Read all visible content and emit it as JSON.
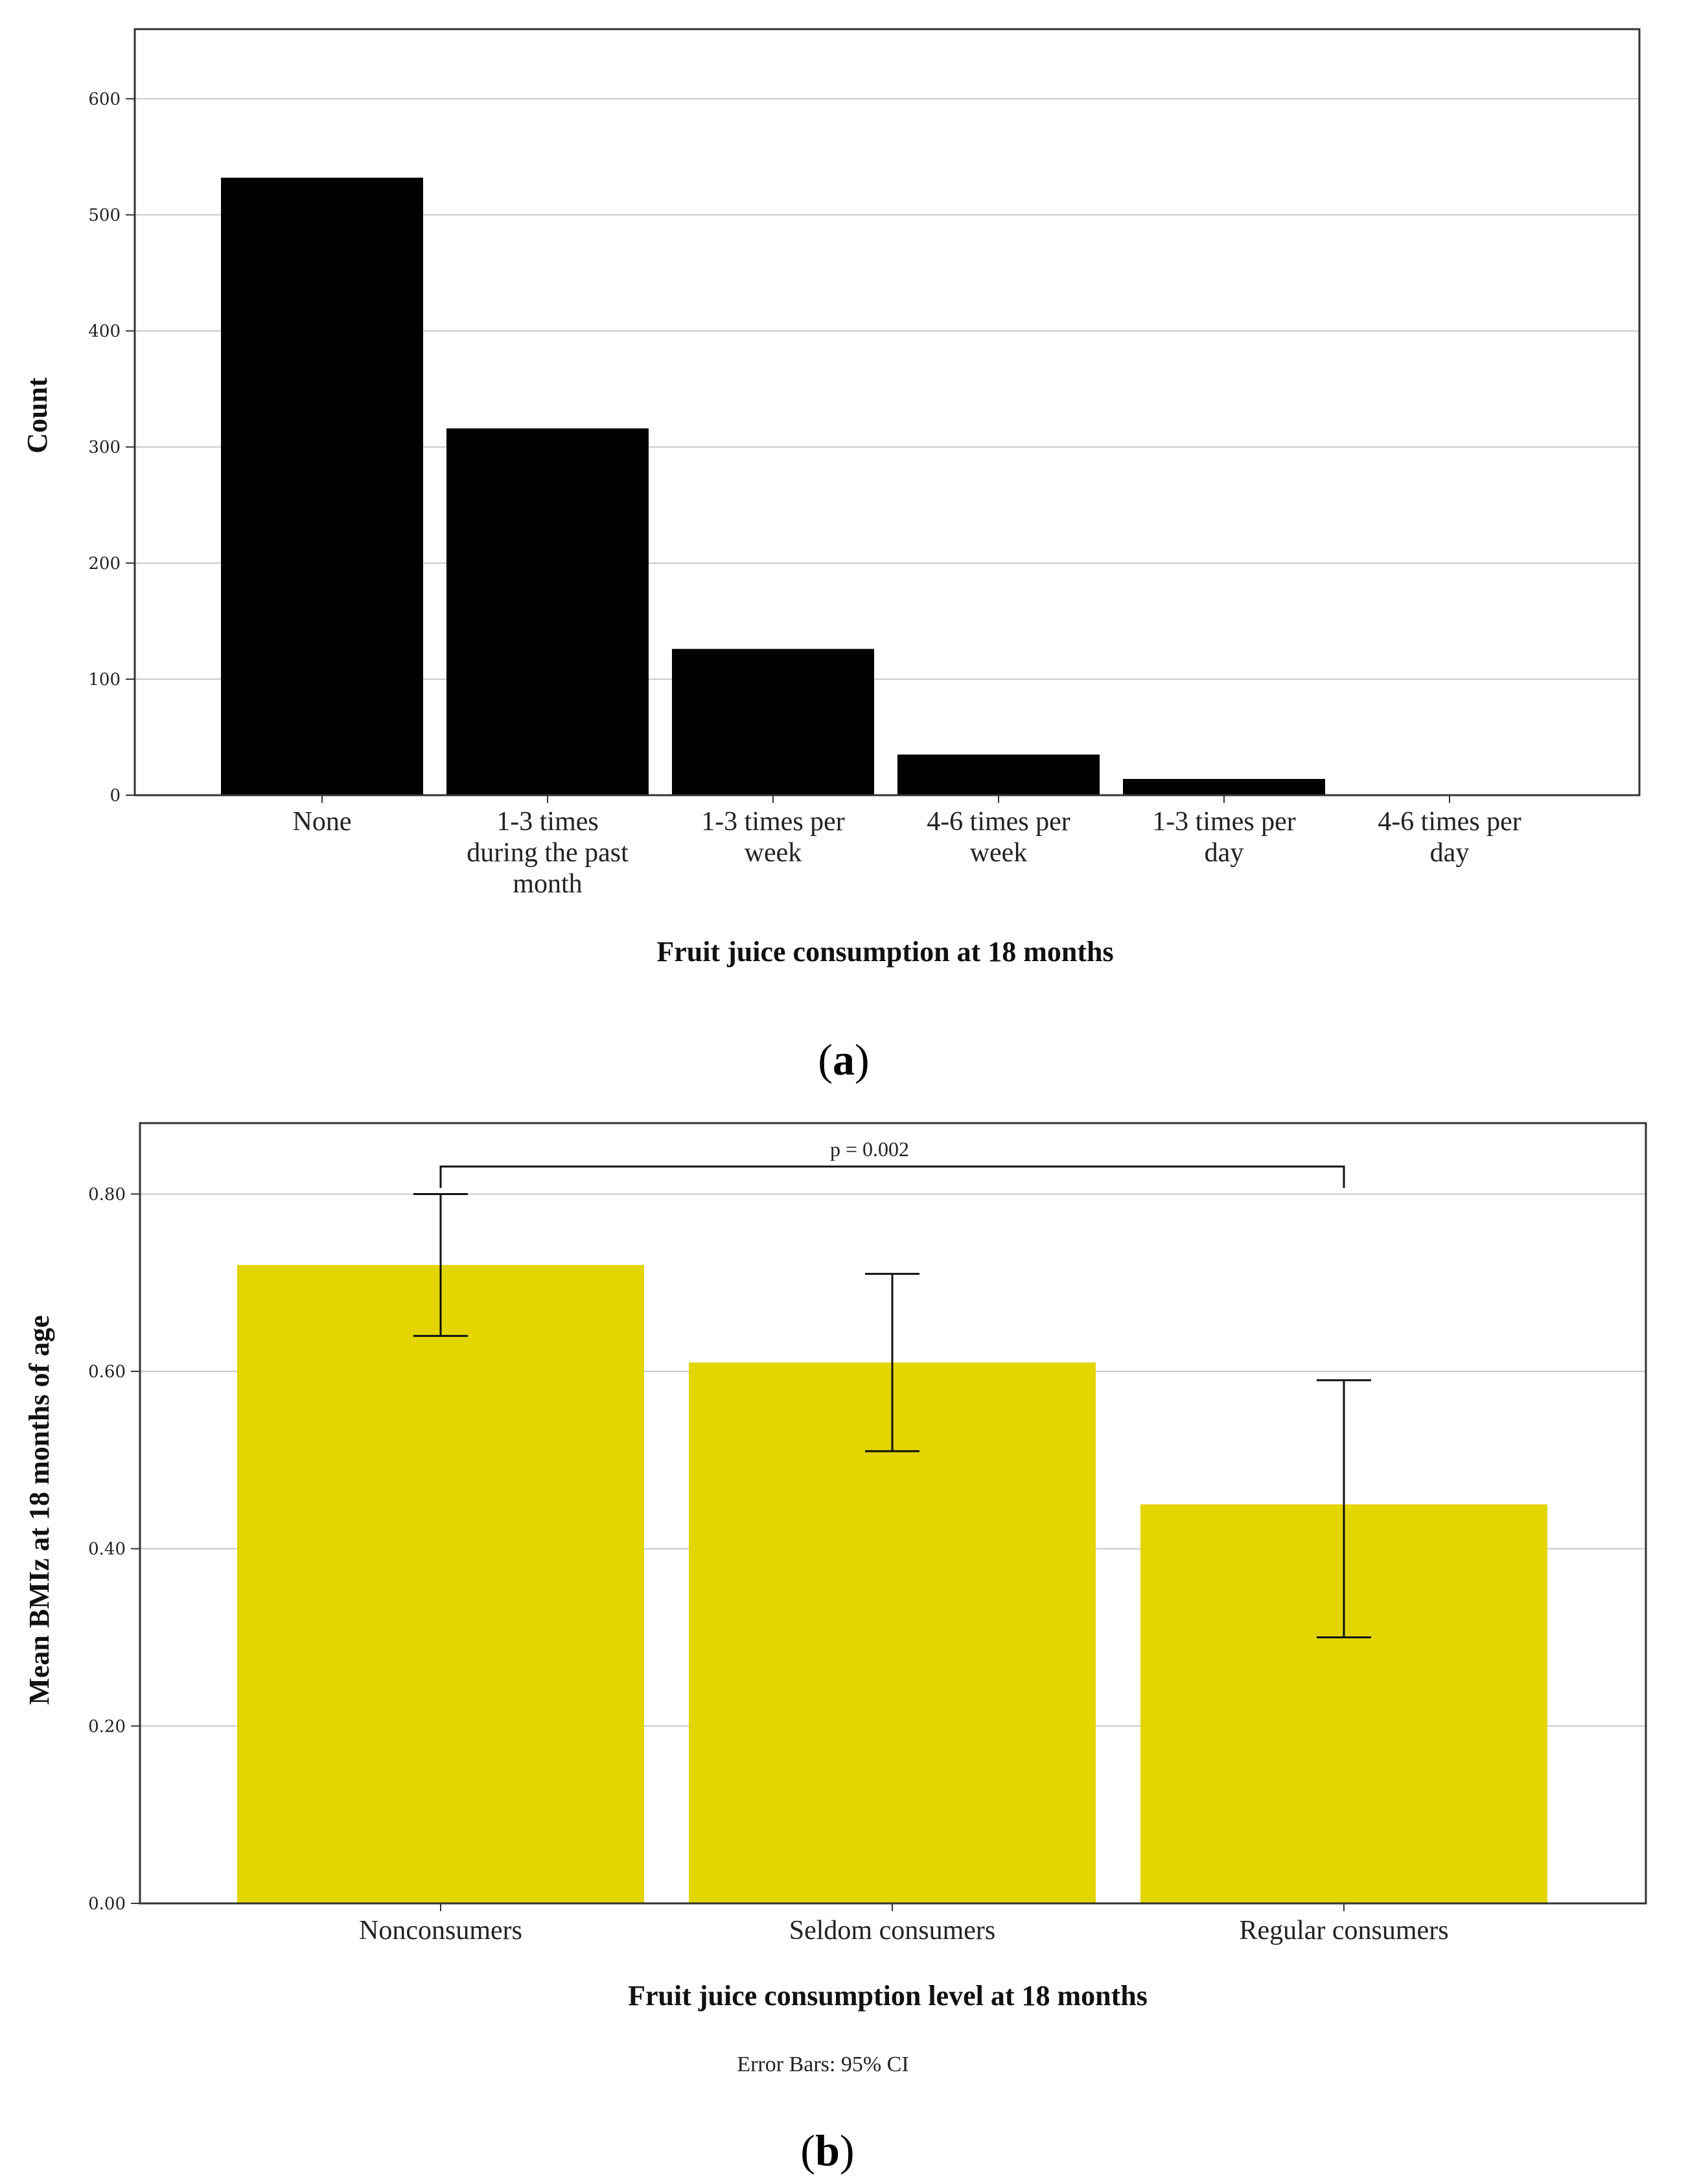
{
  "chart_data": [
    {
      "type": "bar",
      "panel_label": "a",
      "title": "",
      "xlabel": "Fruit juice consumption at 18 months",
      "ylabel": "Count",
      "ylim": [
        0,
        660
      ],
      "yticks": [
        0,
        100,
        200,
        300,
        400,
        500,
        600
      ],
      "grid": true,
      "categories": [
        [
          "None"
        ],
        [
          "1-3 times",
          "during the past",
          "month"
        ],
        [
          "1-3 times per",
          "week"
        ],
        [
          "4-6 times per",
          "week"
        ],
        [
          "1-3 times per",
          "day"
        ],
        [
          "4-6 times per",
          "day"
        ]
      ],
      "values": [
        532,
        316,
        126,
        35,
        14,
        0
      ],
      "bar_color": "#000000"
    },
    {
      "type": "bar",
      "panel_label": "b",
      "title": "",
      "xlabel": "Fruit juice consumption level at 18 months",
      "ylabel": "Mean BMIz at 18 months of age",
      "ylim": [
        0,
        0.88
      ],
      "yticks": [
        "0.00",
        "0.20",
        "0.40",
        "0.60",
        "0.80"
      ],
      "grid": true,
      "categories": [
        "Nonconsumers",
        "Seldom consumers",
        "Regular consumers"
      ],
      "values": [
        0.72,
        0.61,
        0.45
      ],
      "error_low": [
        0.64,
        0.51,
        0.3
      ],
      "error_high": [
        0.8,
        0.71,
        0.59
      ],
      "bar_color": "#e3d500",
      "annotation": "p = 0.002",
      "note": "Error Bars: 95% CI"
    }
  ]
}
